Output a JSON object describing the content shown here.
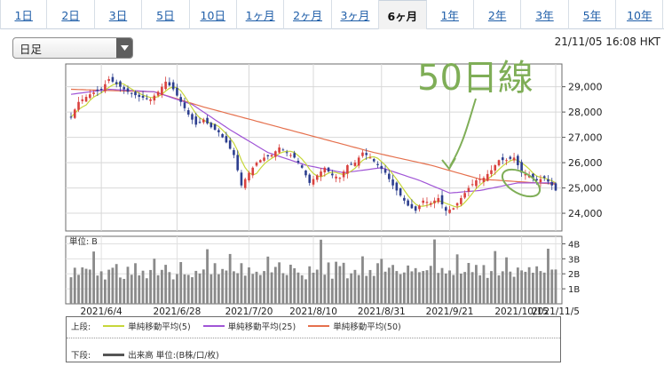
{
  "tabs": [
    {
      "label": "1日"
    },
    {
      "label": "2日"
    },
    {
      "label": "3日"
    },
    {
      "label": "5日"
    },
    {
      "label": "10日"
    },
    {
      "label": "1ヶ月"
    },
    {
      "label": "2ヶ月"
    },
    {
      "label": "3ヶ月"
    },
    {
      "label": "6ヶ月",
      "active": true
    },
    {
      "label": "1年"
    },
    {
      "label": "2年"
    },
    {
      "label": "3年"
    },
    {
      "label": "5年"
    },
    {
      "label": "10年"
    }
  ],
  "interval_select": {
    "value": "日足"
  },
  "timestamp": "21/11/05 16:08 HKT",
  "annotation": {
    "text": "50日線",
    "color": "#7fae57"
  },
  "colors": {
    "up": "#d9413e",
    "down": "#2d3f8f",
    "sma5": "#c7d73a",
    "sma25": "#a055d6",
    "sma50": "#e5704d",
    "volume": "#8a8a8a",
    "annotation": "#7fae57"
  },
  "chart_data": {
    "type": "candlestick",
    "price_axis": {
      "ylim": [
        23300,
        29900
      ],
      "ticks": [
        "29,000",
        "28,000",
        "27,000",
        "26,000",
        "25,000",
        "24,000"
      ],
      "tick_values": [
        29000,
        28000,
        27000,
        26000,
        25000,
        24000
      ]
    },
    "x_ticks": [
      "2021/6/4",
      "2021/6/28",
      "2021/7/20",
      "2021/8/10",
      "2021/8/31",
      "2021/9/21",
      "2021/10/15",
      "2021/11/5"
    ],
    "close_path": [
      [
        0,
        27800
      ],
      [
        2,
        28400
      ],
      [
        5,
        28700
      ],
      [
        8,
        28900
      ],
      [
        10,
        29300
      ],
      [
        12,
        29100
      ],
      [
        15,
        28800
      ],
      [
        18,
        28600
      ],
      [
        21,
        28500
      ],
      [
        23,
        28800
      ],
      [
        25,
        29200
      ],
      [
        27,
        28900
      ],
      [
        29,
        28400
      ],
      [
        31,
        27900
      ],
      [
        33,
        27500
      ],
      [
        35,
        27700
      ],
      [
        37,
        27400
      ],
      [
        39,
        27200
      ],
      [
        41,
        26800
      ],
      [
        43,
        26300
      ],
      [
        45,
        25100
      ],
      [
        47,
        25600
      ],
      [
        49,
        26000
      ],
      [
        51,
        26200
      ],
      [
        53,
        26300
      ],
      [
        55,
        26600
      ],
      [
        57,
        26400
      ],
      [
        59,
        26200
      ],
      [
        61,
        25800
      ],
      [
        63,
        25200
      ],
      [
        65,
        25500
      ],
      [
        67,
        25800
      ],
      [
        69,
        25500
      ],
      [
        71,
        25400
      ],
      [
        73,
        25900
      ],
      [
        75,
        26000
      ],
      [
        77,
        26400
      ],
      [
        79,
        26200
      ],
      [
        81,
        25900
      ],
      [
        83,
        25600
      ],
      [
        85,
        25100
      ],
      [
        87,
        24700
      ],
      [
        89,
        24300
      ],
      [
        91,
        24100
      ],
      [
        93,
        24500
      ],
      [
        95,
        24400
      ],
      [
        97,
        24600
      ],
      [
        99,
        24100
      ],
      [
        101,
        24200
      ],
      [
        103,
        24600
      ],
      [
        105,
        25000
      ],
      [
        107,
        25300
      ],
      [
        109,
        25400
      ],
      [
        111,
        25700
      ],
      [
        113,
        26100
      ],
      [
        115,
        26100
      ],
      [
        117,
        26200
      ],
      [
        119,
        25600
      ],
      [
        121,
        25500
      ],
      [
        123,
        25300
      ],
      [
        125,
        25400
      ],
      [
        127,
        25100
      ],
      [
        128,
        24900
      ]
    ],
    "sma_50": [
      [
        0,
        28900
      ],
      [
        10,
        28850
      ],
      [
        22,
        28800
      ],
      [
        35,
        28200
      ],
      [
        50,
        27600
      ],
      [
        65,
        27000
      ],
      [
        80,
        26400
      ],
      [
        95,
        25900
      ],
      [
        108,
        25350
      ],
      [
        118,
        25250
      ],
      [
        128,
        25150
      ]
    ],
    "sma_25": [
      [
        0,
        28700
      ],
      [
        10,
        28900
      ],
      [
        22,
        28800
      ],
      [
        32,
        28300
      ],
      [
        42,
        27300
      ],
      [
        52,
        26400
      ],
      [
        62,
        25900
      ],
      [
        72,
        25600
      ],
      [
        82,
        25800
      ],
      [
        92,
        25300
      ],
      [
        100,
        24800
      ],
      [
        108,
        24900
      ],
      [
        118,
        25200
      ],
      [
        128,
        25200
      ]
    ],
    "volume_axis": {
      "label": "単位: B",
      "ticks": [
        "4B",
        "3B",
        "2B",
        "1B"
      ],
      "tick_values": [
        4,
        3,
        2,
        1
      ],
      "ylim": [
        0,
        4.5
      ]
    },
    "volume_pattern": [
      2.0,
      2.2,
      1.9,
      2.5,
      2.1,
      2.3,
      3.8,
      2.0,
      2.4,
      1.8,
      2.6,
      2.2,
      3.1,
      2.0,
      1.9,
      2.4,
      2.1,
      2.8,
      2.0,
      2.3,
      1.7,
      2.5,
      3.5,
      2.1,
      2.2,
      2.9,
      2.0,
      1.8,
      2.3,
      2.6
    ],
    "legend": {
      "upper_label": "上段:",
      "upper": [
        {
          "name": "単純移動平均(5)",
          "color": "#c7d73a"
        },
        {
          "name": "単純移動平均(25)",
          "color": "#a055d6"
        },
        {
          "name": "単純移動平均(50)",
          "color": "#e5704d"
        }
      ],
      "lower_label": "下段:",
      "lower": [
        {
          "name": "出来高 単位:(B株/口/枚)",
          "color": "#555555"
        }
      ]
    }
  }
}
